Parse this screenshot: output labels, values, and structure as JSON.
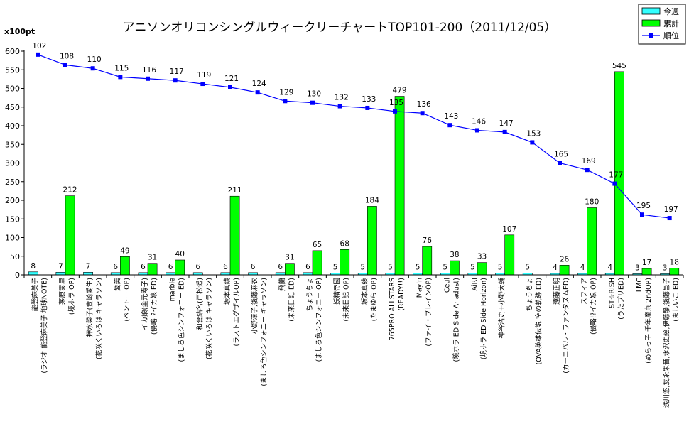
{
  "chart_data": {
    "type": "bar",
    "title": "アニソンオリコンシングルウィークリーチャートTOP101-200（2011/12/05）",
    "ylabel": "x100pt",
    "ylim": [
      0,
      600
    ],
    "ytick_step": 50,
    "y2lim": [
      230,
      100
    ],
    "grid": false,
    "legend_position": "top-right",
    "categories": [
      [
        "能登麻美子",
        "(ラジオ 能登麻美子 地球NOTE)"
      ],
      [
        "茅原実里",
        "(境ホラ OP)"
      ],
      [
        "押水菜子(豊崎愛生)",
        "(花咲くいろは キャラソン)"
      ],
      [
        "愛美",
        "(ベントー OP)"
      ],
      [
        "イカ娘(金元寿子)",
        "(侵略!?イカ娘 ED)"
      ],
      [
        "marble",
        "(ましろ色シンフォニー ED)"
      ],
      [
        "和倉結名(戸松遥)",
        "(花咲くいろは キャラソン)"
      ],
      [
        "坂本真綾",
        "(ラストエグザイルOP)"
      ],
      [
        "小野涼子,後藤麻衣",
        "(ましろ色シンフォニー キャラソン)"
      ],
      [
        "飛蘭",
        "(未来日記 ED)"
      ],
      [
        "ちょうちょ",
        "(ましろ色シンフォニー OP)"
      ],
      [
        "妖精帝國",
        "(未来日記 OP)"
      ],
      [
        "坂本真綾",
        "(たまゆら OP)"
      ],
      [
        "765PRO ALLSTARS",
        "(READY!!)"
      ],
      [
        "May'n",
        "(ファイ・ブレインOP)"
      ],
      [
        "Ceui",
        "(境ホラ ED Side Ariadust)"
      ],
      [
        "AiRI",
        "(境ホラ ED Side Horizon)"
      ],
      [
        "神谷浩史＋小野大輔",
        ""
      ],
      [
        "ちょうちょ",
        "(OVA英雄伝説 空の軌跡 ED)"
      ],
      [
        "遠藤正明",
        "(カーニバル・ファンタズムED)"
      ],
      [
        "スフィア",
        "(侵略!?イカ娘 OP)"
      ],
      [
        "ST☆RISH",
        "(うたプリED)"
      ],
      [
        "LMC",
        "(めらっ子 千年魔京 2ndOP)"
      ],
      [
        "浅川悠,友永朱音,水沢史絵,伊藤静,後藤邑子",
        "(ましいこ ED)"
      ]
    ],
    "series": [
      {
        "name": "今週",
        "type": "bar",
        "color": "#33ffff",
        "values": [
          8,
          7,
          7,
          6,
          6,
          6,
          6,
          6,
          6,
          6,
          6,
          5,
          5,
          5,
          5,
          5,
          5,
          5,
          5,
          4,
          4,
          4,
          3,
          3
        ]
      },
      {
        "name": "累計",
        "type": "bar",
        "color": "#00ff00",
        "values": [
          0,
          212,
          0,
          49,
          31,
          40,
          0,
          211,
          0,
          31,
          65,
          68,
          184,
          479,
          76,
          38,
          33,
          107,
          0,
          26,
          180,
          545,
          17,
          18
        ]
      },
      {
        "name": "順位",
        "type": "line",
        "axis": "secondary",
        "color": "#0000ff",
        "values": [
          102,
          108,
          110,
          115,
          116,
          117,
          119,
          121,
          124,
          129,
          130,
          132,
          133,
          135,
          136,
          143,
          146,
          147,
          153,
          165,
          169,
          177,
          195,
          197
        ]
      }
    ]
  }
}
